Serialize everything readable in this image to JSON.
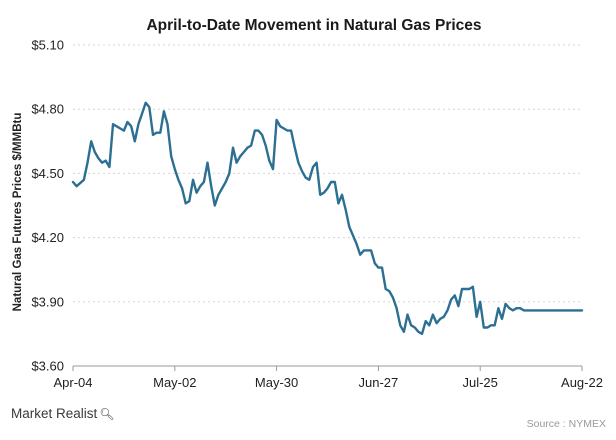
{
  "chart_data": {
    "type": "line",
    "title": "April-to-Date  Movement  in Natural Gas Prices",
    "ylabel": "Natural Gas Futures Prices $/MMBtu",
    "xlabel": "",
    "ylim": [
      3.6,
      5.1
    ],
    "yticks": [
      3.6,
      3.9,
      4.2,
      4.5,
      4.8,
      5.1
    ],
    "ytick_labels": [
      "$3.60",
      "$3.90",
      "$4.20",
      "$4.50",
      "$4.80",
      "$5.10"
    ],
    "xtick_labels": [
      "Apr-04",
      "May-02",
      "May-30",
      "Jun-27",
      "Jul-25",
      "Aug-22"
    ],
    "xtick_days": [
      0,
      28,
      56,
      84,
      112,
      140
    ],
    "grid": true,
    "color": "#2c6f93",
    "series": [
      {
        "days": [
          0,
          1,
          3,
          4,
          5,
          6,
          7,
          8,
          9,
          10,
          11,
          12,
          13,
          14,
          15,
          16,
          17,
          18,
          19,
          20,
          21,
          22,
          23,
          24,
          25,
          26,
          27,
          28,
          29,
          30,
          31,
          32,
          33,
          34,
          35,
          36,
          37,
          38,
          39,
          40,
          41,
          42,
          43,
          44,
          45,
          46,
          47,
          48,
          49,
          50,
          51,
          52,
          53,
          54,
          55,
          56,
          57,
          58,
          59,
          60,
          61,
          62,
          63,
          64,
          65,
          66,
          67,
          68,
          69,
          70,
          71,
          72,
          73,
          74,
          75,
          76,
          77,
          78,
          79,
          80,
          81,
          82,
          83,
          84,
          85,
          86,
          87,
          88,
          89,
          90,
          91,
          92,
          93,
          94,
          95,
          96,
          97,
          98,
          99,
          100,
          101,
          102,
          103,
          104,
          105,
          106,
          107,
          108,
          109,
          110,
          111,
          112,
          113,
          114,
          115,
          116,
          117,
          118,
          119,
          120,
          121,
          122,
          123,
          124,
          125,
          126,
          127,
          128,
          129,
          130,
          131,
          132,
          133,
          134,
          135,
          136,
          137,
          138,
          139,
          140
        ],
        "values": [
          4.46,
          4.44,
          4.47,
          4.55,
          4.65,
          4.6,
          4.57,
          4.55,
          4.56,
          4.53,
          4.73,
          4.72,
          4.71,
          4.7,
          4.74,
          4.72,
          4.65,
          4.73,
          4.78,
          4.83,
          4.81,
          4.68,
          4.69,
          4.69,
          4.79,
          4.73,
          4.58,
          4.52,
          4.47,
          4.43,
          4.36,
          4.37,
          4.47,
          4.41,
          4.44,
          4.46,
          4.55,
          4.44,
          4.35,
          4.4,
          4.43,
          4.46,
          4.5,
          4.62,
          4.55,
          4.58,
          4.6,
          4.62,
          4.63,
          4.7,
          4.7,
          4.68,
          4.63,
          4.56,
          4.52,
          4.75,
          4.72,
          4.71,
          4.7,
          4.7,
          4.62,
          4.55,
          4.51,
          4.48,
          4.47,
          4.53,
          4.55,
          4.4,
          4.41,
          4.43,
          4.46,
          4.46,
          4.36,
          4.4,
          4.33,
          4.25,
          4.21,
          4.17,
          4.12,
          4.14,
          4.14,
          4.14,
          4.08,
          4.06,
          4.06,
          3.96,
          3.95,
          3.92,
          3.87,
          3.79,
          3.76,
          3.84,
          3.79,
          3.78,
          3.76,
          3.75,
          3.81,
          3.79,
          3.84,
          3.8,
          3.82,
          3.83,
          3.86,
          3.91,
          3.93,
          3.88,
          3.96,
          3.96,
          3.96,
          3.97,
          3.83,
          3.9,
          3.78,
          3.78,
          3.79,
          3.79,
          3.87,
          3.82,
          3.89,
          3.87,
          3.86,
          3.87,
          3.87,
          3.86,
          3.86,
          3.86,
          3.86,
          3.86,
          3.86,
          3.86,
          3.86,
          3.86,
          3.86,
          3.86,
          3.86,
          3.86,
          3.86,
          3.86,
          3.86,
          3.86
        ]
      }
    ]
  },
  "footer": {
    "logo_text": "Market Realist",
    "logo_icon": "magnifier-icon",
    "source": "Source : NYMEX"
  }
}
